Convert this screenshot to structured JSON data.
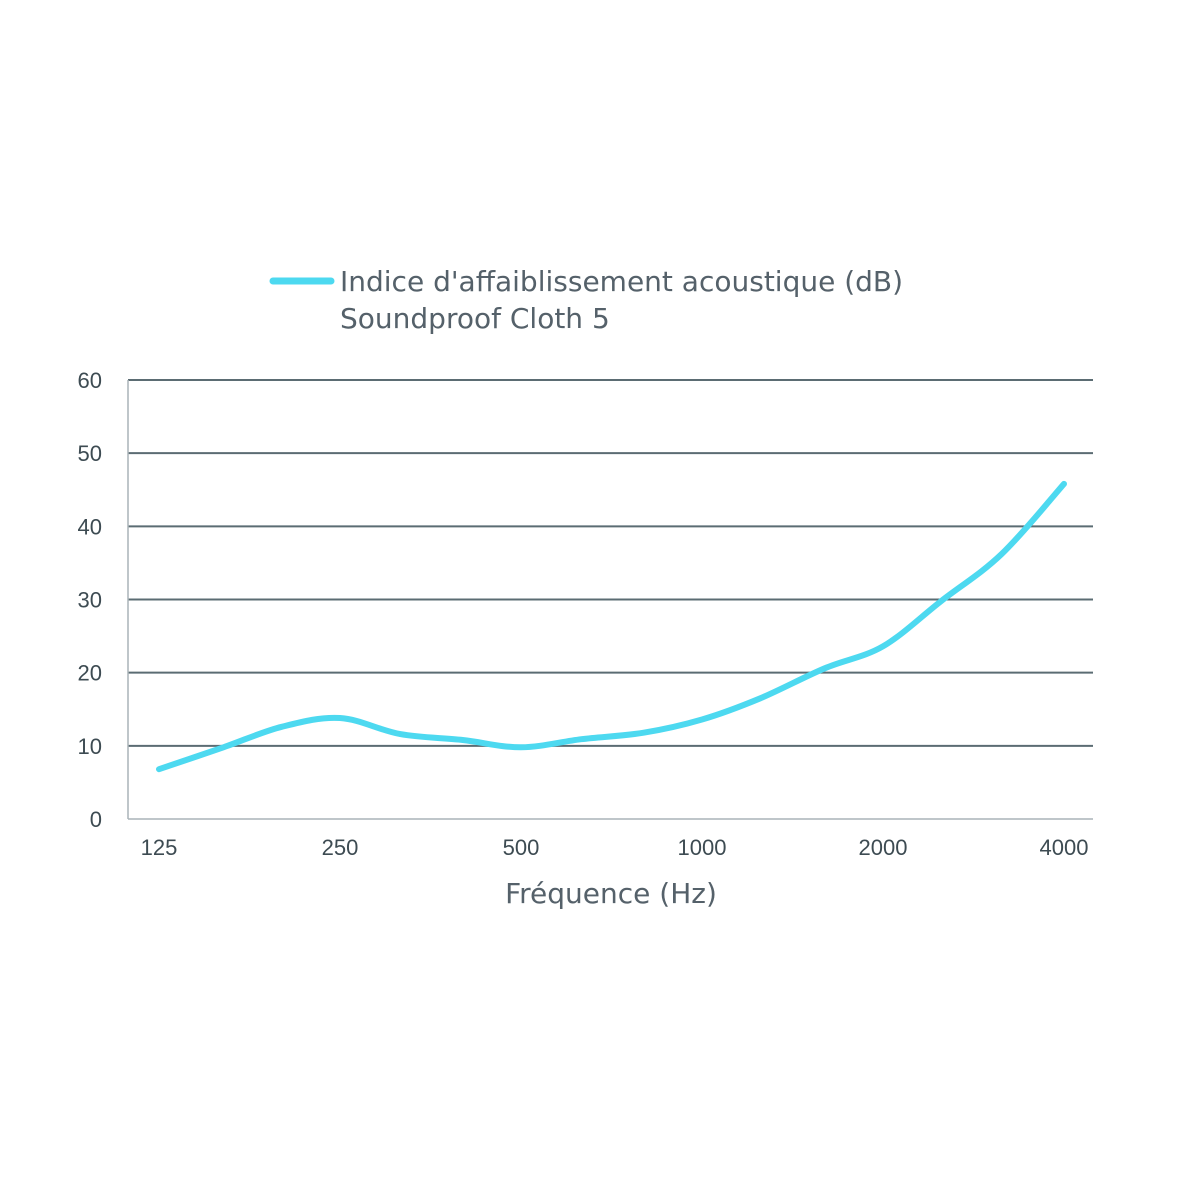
{
  "chart_data": {
    "type": "line",
    "legend": {
      "entries": [
        {
          "line1": "Indice d'affaiblissement acoustique (dB)",
          "line2": "Soundproof Cloth 5"
        }
      ],
      "placement": "top"
    },
    "xlabel": "Fréquence (Hz)",
    "ylabel": "",
    "categories": [
      "125",
      "250",
      "500",
      "1000",
      "2000",
      "4000"
    ],
    "x_scale": "log2",
    "yticks": [
      "0",
      "10",
      "20",
      "30",
      "40",
      "50",
      "60"
    ],
    "ylim": [
      0,
      60
    ],
    "grid": true,
    "series": [
      {
        "color": "#4dd9f0",
        "x": [
          125,
          160,
          200,
          250,
          315,
          400,
          500,
          630,
          800,
          1000,
          1250,
          1600,
          2000,
          2500,
          3150,
          4000
        ],
        "y": [
          6.8,
          9.8,
          12.6,
          13.8,
          11.6,
          10.8,
          9.8,
          10.9,
          11.8,
          13.6,
          16.5,
          20.6,
          23.6,
          29.8,
          36.2,
          45.8
        ]
      }
    ],
    "colors": {
      "line": "#4dd9f0",
      "grid": "#5b6c73",
      "text": "#3d4b52"
    }
  }
}
